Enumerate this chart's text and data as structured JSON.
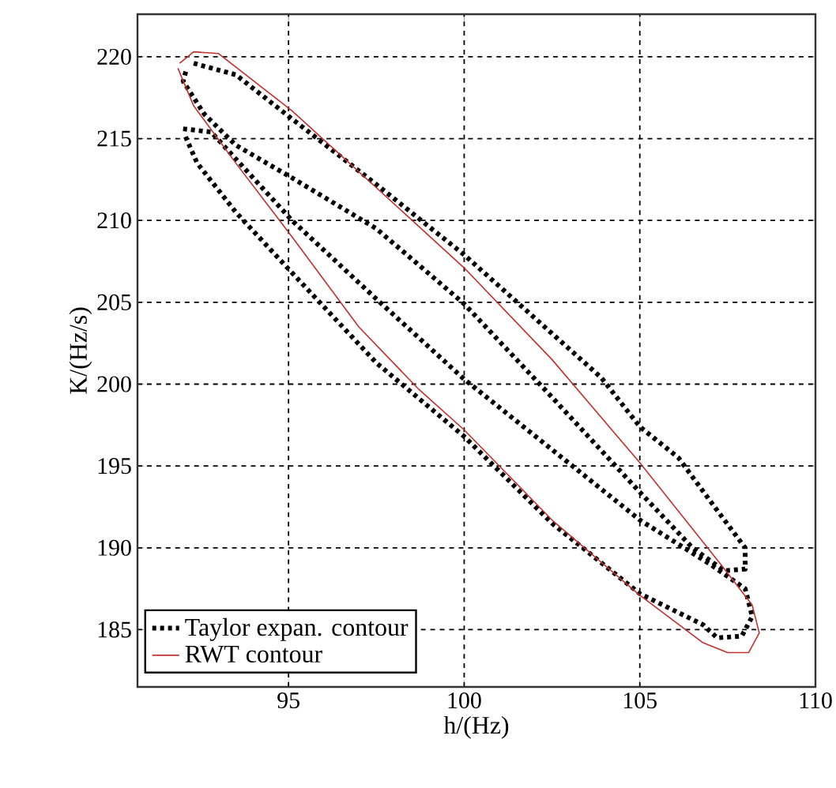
{
  "chart_data": {
    "type": "line",
    "xlabel": "h/(Hz)",
    "ylabel": "K/(Hz/s)",
    "xlim": [
      90.7,
      110
    ],
    "xticks": [
      95,
      100,
      105,
      110
    ],
    "ylim": [
      181.5,
      222.6
    ],
    "yticks": [
      185,
      190,
      195,
      200,
      205,
      210,
      215,
      220
    ],
    "grid": true,
    "legend": "bottom left",
    "series": [
      {
        "name": "Taylor expan. contour",
        "color": "#000000",
        "line_style": "dotted",
        "x": [
          92.3,
          93.5,
          95.1,
          97.5,
          100,
          103.9,
          105,
          106.1,
          107.3,
          108.0,
          108.0,
          107.4,
          106.5,
          105,
          102.5,
          100,
          97.5,
          95.1,
          93.5,
          92.6,
          92.0,
          92.1,
          null,
          92.0,
          92.8,
          95.1,
          97.5,
          100,
          102.5,
          105,
          107.0,
          108.0,
          108.2,
          107.9,
          107.2,
          106.8,
          105,
          102.5,
          100,
          97.5,
          95.1,
          93.5,
          92.4,
          92.05
        ],
        "values": [
          219.6,
          218.9,
          216.2,
          212.2,
          207.9,
          200.4,
          197.4,
          195.5,
          192.0,
          190.0,
          188.7,
          188.6,
          190.0,
          193.4,
          199.2,
          204.9,
          209.5,
          212.6,
          214.6,
          216.5,
          218.5,
          219.3,
          null,
          215.6,
          215.4,
          210.0,
          205.2,
          200.3,
          196.0,
          191.7,
          189.0,
          187.5,
          185.8,
          184.6,
          184.5,
          185.3,
          187.2,
          191.5,
          196.8,
          201.3,
          206.8,
          210.5,
          213.5,
          215.2
        ]
      },
      {
        "name": "RWT contour",
        "color": "#c0302c",
        "line_style": "solid",
        "x": [
          91.9,
          92.3,
          93.0,
          95.1,
          97.5,
          100,
          102.5,
          105,
          107.3,
          108.2,
          108.4,
          108.1,
          107.5,
          106.8,
          105,
          102.5,
          100,
          98.7,
          97,
          95.1,
          93.5,
          92.3,
          91.85
        ],
        "values": [
          219.6,
          220.3,
          220.2,
          216.7,
          212.0,
          207.1,
          201.5,
          195.2,
          189.0,
          186.5,
          184.8,
          183.6,
          183.6,
          184.2,
          187.1,
          191.7,
          197.2,
          199.7,
          203.5,
          209.0,
          213.5,
          217.0,
          219.3
        ]
      }
    ]
  }
}
